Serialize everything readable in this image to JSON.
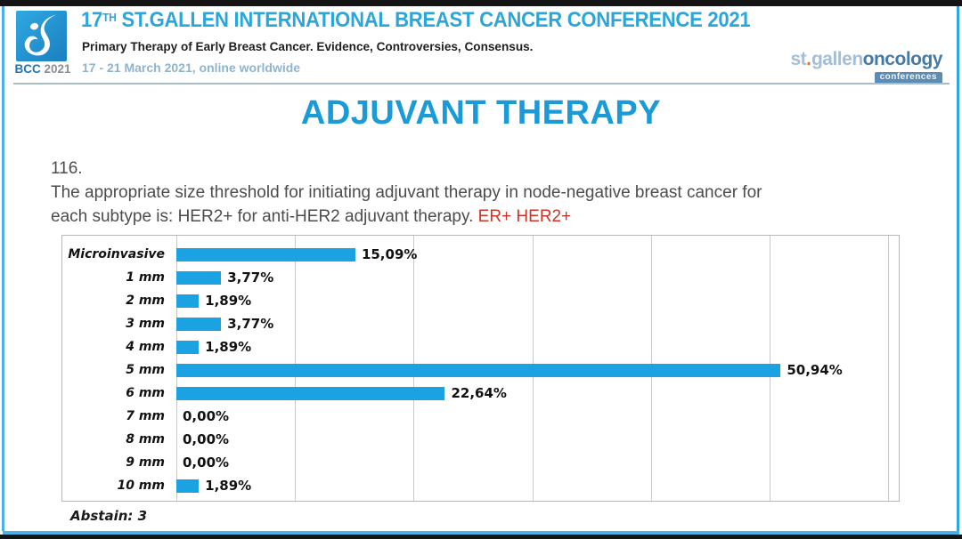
{
  "header": {
    "logo_bcc": "BCC",
    "logo_year": "2021",
    "title_num": "17",
    "title_sup": "TH",
    "title_rest": " ST.GALLEN INTERNATIONAL BREAST CANCER CONFERENCE 2021",
    "subtitle": "Primary Therapy of Early Breast Cancer. Evidence, Controversies, Consensus.",
    "date_line": "17 - 21 March 2021, online worldwide",
    "brand_st": "st",
    "brand_dot": ".",
    "brand_gallen": "gallen",
    "brand_oncology": "oncology",
    "brand_conferences": "conferences"
  },
  "main": {
    "slide_title": "ADJUVANT THERAPY",
    "question_number": "116.",
    "question_line1": "The appropriate size threshold for initiating adjuvant therapy in node-negative breast cancer for",
    "question_line2": "each subtype is: HER2+ for anti-HER2 adjuvant therapy. ",
    "question_highlight": "ER+ HER2+",
    "abstain_note": "Abstain: 3"
  },
  "colors": {
    "bar_blue": "#1ba2e3",
    "title_blue": "#1a9bd7",
    "header_blue": "#2aa6db",
    "highlight_red": "#cd3529"
  },
  "chart_data": {
    "type": "bar",
    "orientation": "horizontal",
    "title": "",
    "xlabel": "",
    "ylabel": "",
    "categories": [
      "Microinvasive",
      "1 mm",
      "2 mm",
      "3 mm",
      "4 mm",
      "5 mm",
      "6 mm",
      "7 mm",
      "8 mm",
      "9 mm",
      "10 mm"
    ],
    "values": [
      15.09,
      3.77,
      1.89,
      3.77,
      1.89,
      50.94,
      22.64,
      0.0,
      0.0,
      0.0,
      1.89
    ],
    "value_labels": [
      "15,09%",
      "3,77%",
      "1,89%",
      "3,77%",
      "1,89%",
      "50,94%",
      "22,64%",
      "0,00%",
      "0,00%",
      "0,00%",
      "1,89%"
    ],
    "xlim": [
      0,
      60
    ],
    "gridline_step": 10,
    "grid": true,
    "legend": false,
    "bar_color": "#1ba2e3"
  }
}
